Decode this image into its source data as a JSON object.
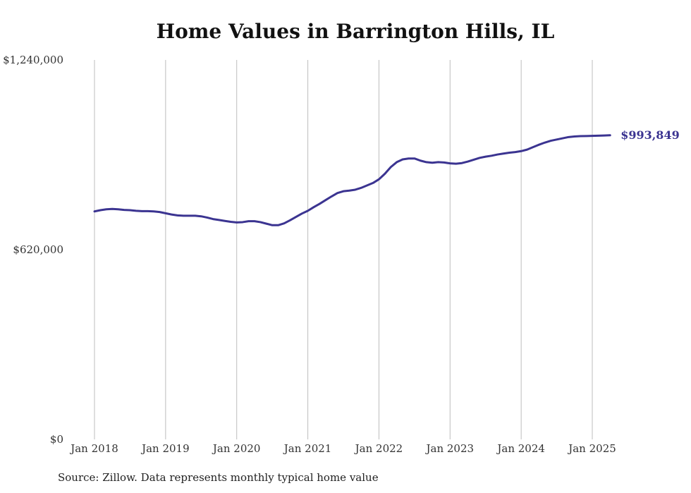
{
  "chart_data": {
    "type": "line",
    "title": "Home Values in Barrington Hills, IL",
    "xlabel": "",
    "ylabel": "",
    "ylim": [
      0,
      1240000
    ],
    "yticks": [
      {
        "value": 0,
        "label": "$0"
      },
      {
        "value": 620000,
        "label": "$620,000"
      },
      {
        "value": 1240000,
        "label": "$1,240,000"
      }
    ],
    "xticks": [
      {
        "value": "2018-01",
        "label": "Jan 2018"
      },
      {
        "value": "2019-01",
        "label": "Jan 2019"
      },
      {
        "value": "2020-01",
        "label": "Jan 2020"
      },
      {
        "value": "2021-01",
        "label": "Jan 2021"
      },
      {
        "value": "2022-01",
        "label": "Jan 2022"
      },
      {
        "value": "2023-01",
        "label": "Jan 2023"
      },
      {
        "value": "2024-01",
        "label": "Jan 2024"
      },
      {
        "value": "2025-01",
        "label": "Jan 2025"
      }
    ],
    "grid": "vertical",
    "line_color": "#3b3491",
    "end_label": "$993,849",
    "series": [
      {
        "x": [
          "2018-01",
          "2018-02",
          "2018-03",
          "2018-04",
          "2018-05",
          "2018-06",
          "2018-07",
          "2018-08",
          "2018-09",
          "2018-10",
          "2018-11",
          "2018-12",
          "2019-01",
          "2019-02",
          "2019-03",
          "2019-04",
          "2019-05",
          "2019-06",
          "2019-07",
          "2019-08",
          "2019-09",
          "2019-10",
          "2019-11",
          "2019-12",
          "2020-01",
          "2020-02",
          "2020-03",
          "2020-04",
          "2020-05",
          "2020-06",
          "2020-07",
          "2020-08",
          "2020-09",
          "2020-10",
          "2020-11",
          "2020-12",
          "2021-01",
          "2021-02",
          "2021-03",
          "2021-04",
          "2021-05",
          "2021-06",
          "2021-07",
          "2021-08",
          "2021-09",
          "2021-10",
          "2021-11",
          "2021-12",
          "2022-01",
          "2022-02",
          "2022-03",
          "2022-04",
          "2022-05",
          "2022-06",
          "2022-07",
          "2022-08",
          "2022-09",
          "2022-10",
          "2022-11",
          "2022-12",
          "2023-01",
          "2023-02",
          "2023-03",
          "2023-04",
          "2023-05",
          "2023-06",
          "2023-07",
          "2023-08",
          "2023-09",
          "2023-10",
          "2023-11",
          "2023-12",
          "2024-01",
          "2024-02",
          "2024-03",
          "2024-04",
          "2024-05",
          "2024-06",
          "2024-07",
          "2024-08",
          "2024-09",
          "2024-10",
          "2024-11",
          "2024-12",
          "2025-01",
          "2025-02",
          "2025-03",
          "2025-04"
        ],
        "values": [
          745000,
          749000,
          752000,
          753000,
          752000,
          750000,
          749000,
          747000,
          746000,
          746000,
          745000,
          743000,
          739000,
          735000,
          732000,
          731000,
          731000,
          731000,
          729000,
          725000,
          720000,
          717000,
          714000,
          711000,
          709000,
          710000,
          713000,
          713000,
          710000,
          705000,
          700000,
          700000,
          706000,
          716000,
          727000,
          738000,
          747000,
          759000,
          770000,
          782000,
          794000,
          805000,
          811000,
          813000,
          816000,
          822000,
          830000,
          838000,
          850000,
          868000,
          890000,
          906000,
          915000,
          918000,
          918000,
          911000,
          906000,
          904000,
          906000,
          905000,
          902000,
          901000,
          903000,
          908000,
          914000,
          920000,
          924000,
          927000,
          931000,
          934000,
          937000,
          939000,
          942000,
          947000,
          955000,
          963000,
          970000,
          976000,
          980000,
          984000,
          988000,
          990000,
          991000,
          991500,
          992000,
          992500,
          993200,
          993849
        ]
      }
    ]
  },
  "source_note": "Source: Zillow. Data represents monthly typical home value"
}
